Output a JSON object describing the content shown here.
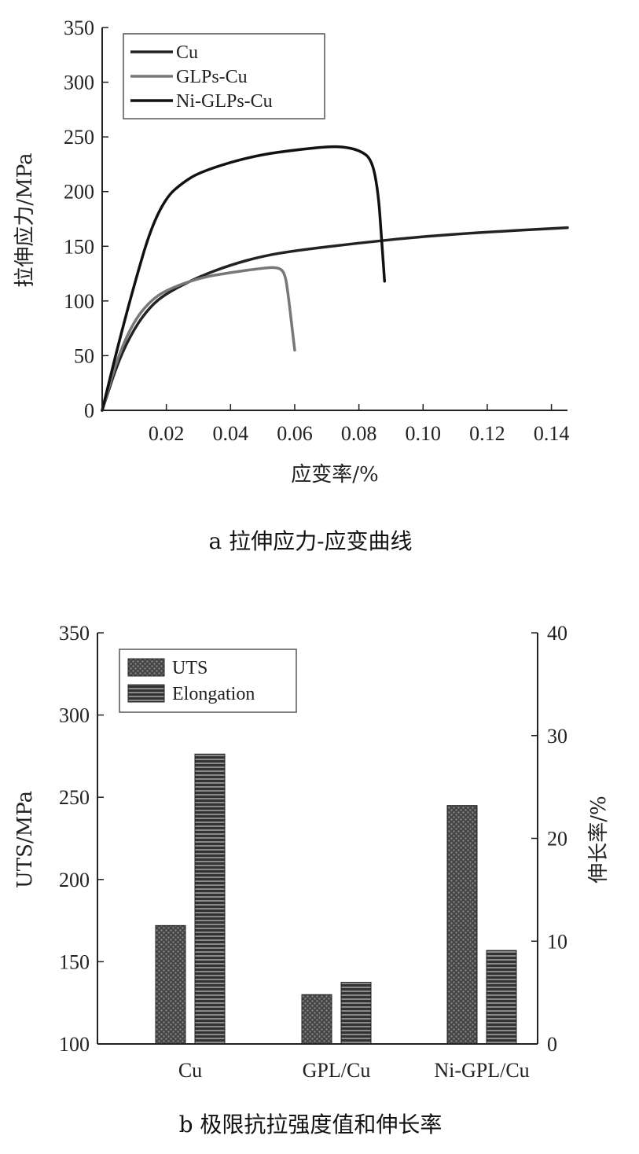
{
  "chart_data": [
    {
      "type": "line",
      "caption": "a 拉伸应力-应变曲线",
      "xlabel": "应变率/%",
      "ylabel": "拉伸应力/MPa",
      "xlim": [
        0,
        0.145
      ],
      "ylim": [
        0,
        350
      ],
      "xticks": [
        0.02,
        0.04,
        0.06,
        0.08,
        0.1,
        0.12,
        0.14
      ],
      "xtick_labels": [
        "0.02",
        "0.04",
        "0.06",
        "0.08",
        "0.10",
        "0.12",
        "0.14"
      ],
      "yticks": [
        0,
        50,
        100,
        150,
        200,
        250,
        300,
        350
      ],
      "ytick_labels": [
        "0",
        "50",
        "100",
        "150",
        "200",
        "250",
        "300",
        "350"
      ],
      "legend": {
        "position": "top-left",
        "entries": [
          "Cu",
          "GLPs-Cu",
          "Ni-GLPs-Cu"
        ]
      },
      "series": [
        {
          "name": "Cu",
          "color": "#222222",
          "x": [
            0,
            0.005,
            0.01,
            0.015,
            0.02,
            0.03,
            0.04,
            0.05,
            0.06,
            0.08,
            0.1,
            0.12,
            0.145
          ],
          "y": [
            0,
            45,
            75,
            95,
            107,
            122,
            133,
            141,
            146,
            153,
            159,
            163,
            167
          ]
        },
        {
          "name": "GLPs-Cu",
          "color": "#777777",
          "x": [
            0,
            0.005,
            0.01,
            0.015,
            0.02,
            0.03,
            0.04,
            0.05,
            0.055,
            0.057,
            0.058,
            0.059,
            0.06
          ],
          "y": [
            0,
            50,
            82,
            100,
            110,
            121,
            126,
            130,
            131,
            125,
            105,
            80,
            55
          ]
        },
        {
          "name": "Ni-GLPs-Cu",
          "color": "#111111",
          "x": [
            0,
            0.005,
            0.01,
            0.015,
            0.02,
            0.025,
            0.03,
            0.04,
            0.05,
            0.06,
            0.07,
            0.075,
            0.08,
            0.084,
            0.086,
            0.087,
            0.088
          ],
          "y": [
            0,
            60,
            115,
            165,
            195,
            208,
            217,
            227,
            234,
            238,
            241,
            241,
            238,
            230,
            200,
            160,
            118
          ]
        }
      ]
    },
    {
      "type": "bar",
      "caption": "b 极限抗拉强度值和伸长率",
      "categories": [
        "Cu",
        "GPL/Cu",
        "Ni-GPL/Cu"
      ],
      "ylabel": "UTS/MPa",
      "ylim": [
        100,
        350
      ],
      "yticks": [
        100,
        150,
        200,
        250,
        300,
        350
      ],
      "ytick_labels": [
        "100",
        "150",
        "200",
        "250",
        "300",
        "350"
      ],
      "y2label": "伸长率/%",
      "y2lim": [
        0,
        40
      ],
      "y2ticks": [
        0,
        10,
        20,
        30,
        40
      ],
      "y2tick_labels": [
        "0",
        "10",
        "20",
        "30",
        "40"
      ],
      "legend": {
        "position": "top-left",
        "entries": [
          "UTS",
          "Elongation"
        ]
      },
      "series": [
        {
          "name": "UTS",
          "axis": "left",
          "values": [
            172,
            130,
            245
          ],
          "pattern": "dots"
        },
        {
          "name": "Elongation",
          "axis": "right",
          "values": [
            28.2,
            6,
            9.1
          ],
          "pattern": "stripes"
        }
      ]
    }
  ]
}
